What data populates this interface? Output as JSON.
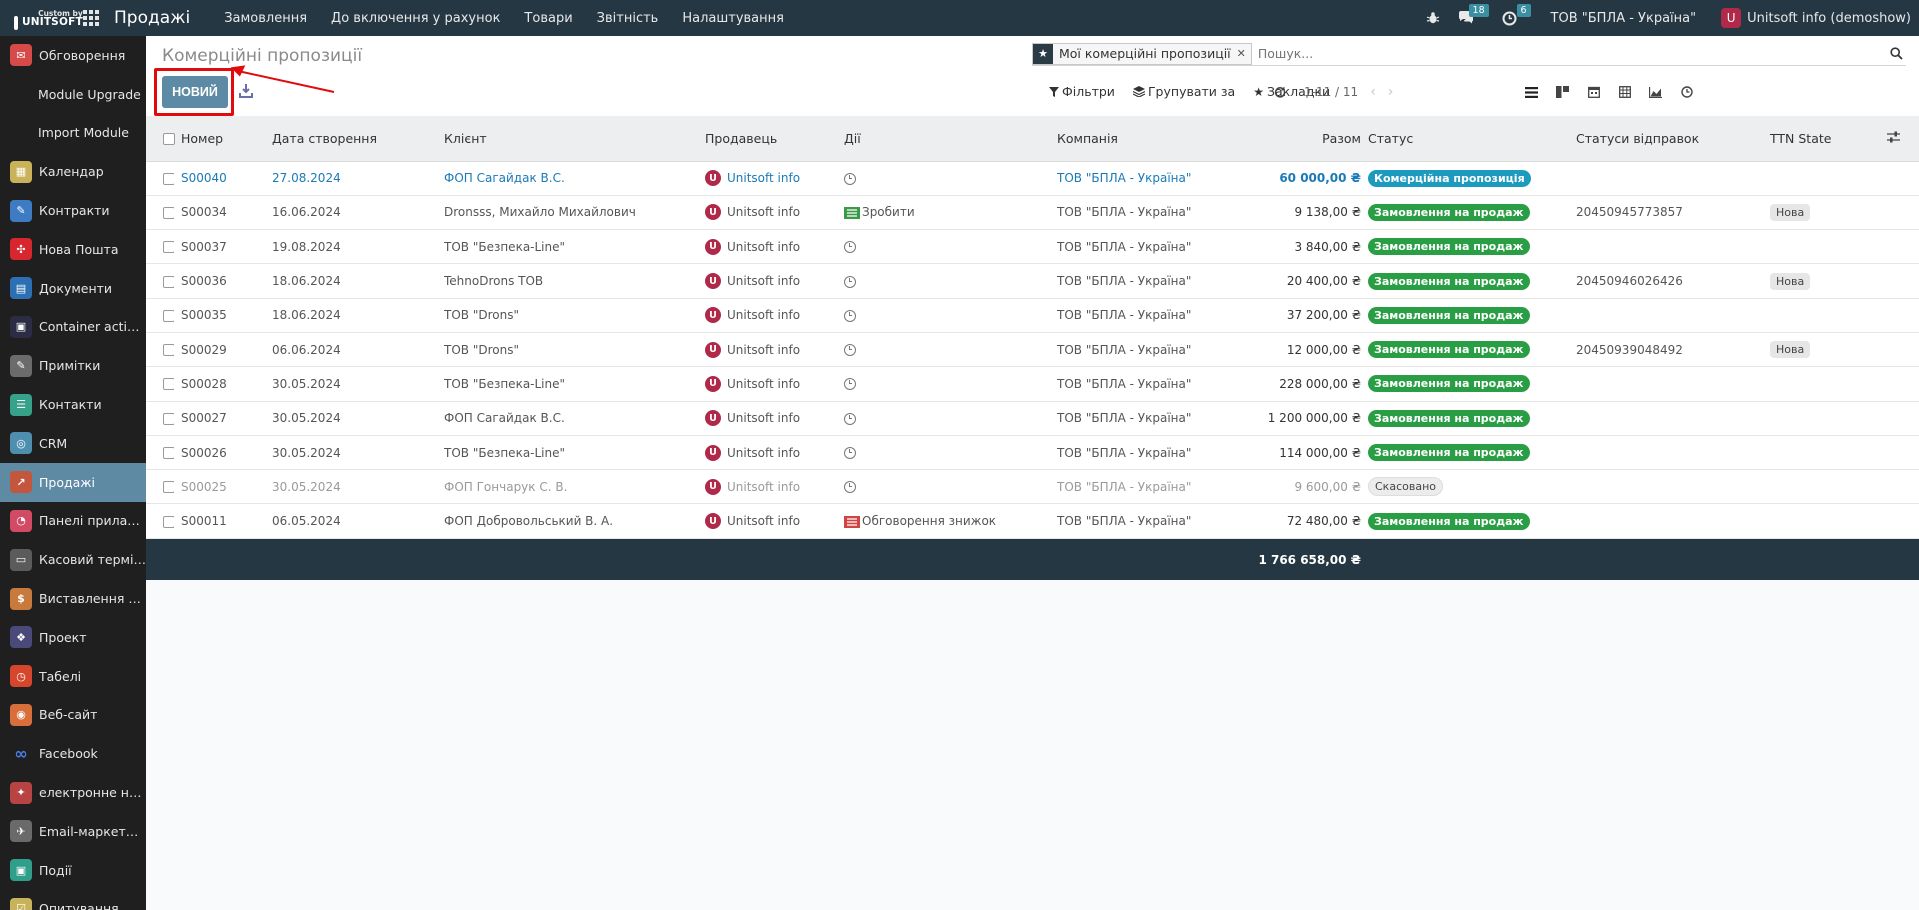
{
  "topbar": {
    "brand_small": "Custom by",
    "brand_big": "UNITSOFT",
    "app_title": "Продажі",
    "menu": [
      "Замовлення",
      "До включення у рахунок",
      "Товари",
      "Звітність",
      "Налаштування"
    ],
    "messages_count": "18",
    "activities_count": "6",
    "company": "ТОВ \"БПЛА - Україна\"",
    "user_initial": "U",
    "user_name": "Unitsoft info (demoshow)"
  },
  "sidebar": {
    "items": [
      {
        "label": "Обговорення",
        "icon": "chat-icon",
        "color": "#d64a4a"
      },
      {
        "label": "Module Upgrade",
        "icon": "",
        "color": ""
      },
      {
        "label": "Import Module",
        "icon": "",
        "color": ""
      },
      {
        "label": "Календар",
        "icon": "calendar-icon",
        "color": "#c9b25a"
      },
      {
        "label": "Контракти",
        "icon": "contract-icon",
        "color": "#3d7bc2"
      },
      {
        "label": "Нова Пошта",
        "icon": "nova-poshta-icon",
        "color": "#d8262f"
      },
      {
        "label": "Документи",
        "icon": "documents-icon",
        "color": "#2d6fb3"
      },
      {
        "label": "Container actions",
        "icon": "container-icon",
        "color": "#2c2c44"
      },
      {
        "label": "Примітки",
        "icon": "notes-icon",
        "color": "#6b6b6b"
      },
      {
        "label": "Контакти",
        "icon": "contacts-icon",
        "color": "#37a28a"
      },
      {
        "label": "CRM",
        "icon": "crm-icon",
        "color": "#4e8fb0"
      },
      {
        "label": "Продажі",
        "icon": "sales-icon",
        "color": "#c4563d"
      },
      {
        "label": "Панелі приладів",
        "icon": "dashboard-icon",
        "color": "#d24a63"
      },
      {
        "label": "Касовий термін...",
        "icon": "pos-icon",
        "color": "#5b5b5b"
      },
      {
        "label": "Виставлення ра...",
        "icon": "invoicing-icon",
        "color": "#c87a3d"
      },
      {
        "label": "Проект",
        "icon": "project-icon",
        "color": "#4a4a7a"
      },
      {
        "label": "Табелі",
        "icon": "timesheet-icon",
        "color": "#d5462d"
      },
      {
        "label": "Веб-сайт",
        "icon": "website-icon",
        "color": "#d86f3b"
      },
      {
        "label": "Facebook",
        "icon": "facebook-icon",
        "color": ""
      },
      {
        "label": "електронне на...",
        "icon": "elearning-icon",
        "color": "#b84343"
      },
      {
        "label": "Email-маркетинг",
        "icon": "email-marketing-icon",
        "color": "#6a6a6a"
      },
      {
        "label": "Події",
        "icon": "events-icon",
        "color": "#2f9e8a"
      },
      {
        "label": "Опитування",
        "icon": "survey-icon",
        "color": "#c9b35a"
      }
    ],
    "active_index": 11
  },
  "control": {
    "breadcrumb": "Комерційні пропозиції",
    "new_button": "НОВИЙ",
    "facet": "Мої комерційні пропозиції",
    "search_placeholder": "Пошук...",
    "filters": "Фільтри",
    "group_by": "Групувати за",
    "favorites": "Закладки",
    "pager": "1-11 / 11"
  },
  "table": {
    "headers": {
      "number": "Номер",
      "date": "Дата створення",
      "client": "Клієнт",
      "seller": "Продавець",
      "actions": "Дії",
      "company": "Компанія",
      "total": "Разом",
      "status": "Статус",
      "shipments": "Статуси відправок",
      "ttn": "TTN State"
    },
    "rows": [
      {
        "number": "S00040",
        "date": "27.08.2024",
        "client": "ФОП Сагайдак В.С.",
        "seller": "Unitsoft info",
        "activity": "",
        "activity_type": "clock",
        "company": "ТОВ \"БПЛА - Україна\"",
        "total": "60 000,00 ₴",
        "status": "Комерційна пропозиція",
        "status_kind": "quote",
        "shipment": "",
        "ttn": ""
      },
      {
        "number": "S00034",
        "date": "16.06.2024",
        "client": "Dronsss, Михайло Михайлович",
        "seller": "Unitsoft info",
        "activity": "Зробити",
        "activity_type": "todo",
        "company": "ТОВ \"БПЛА - Україна\"",
        "total": "9 138,00 ₴",
        "status": "Замовлення на продаж",
        "status_kind": "order",
        "shipment": "20450945773857",
        "ttn": "Нова"
      },
      {
        "number": "S00037",
        "date": "19.08.2024",
        "client": "ТОВ \"Безпека-Line\"",
        "seller": "Unitsoft info",
        "activity": "",
        "activity_type": "clock",
        "company": "ТОВ \"БПЛА - Україна\"",
        "total": "3 840,00 ₴",
        "status": "Замовлення на продаж",
        "status_kind": "order",
        "shipment": "",
        "ttn": ""
      },
      {
        "number": "S00036",
        "date": "18.06.2024",
        "client": "TehnoDrons ТОВ",
        "seller": "Unitsoft info",
        "activity": "",
        "activity_type": "clock",
        "company": "ТОВ \"БПЛА - Україна\"",
        "total": "20 400,00 ₴",
        "status": "Замовлення на продаж",
        "status_kind": "order",
        "shipment": "20450946026426",
        "ttn": "Нова"
      },
      {
        "number": "S00035",
        "date": "18.06.2024",
        "client": "ТОВ \"Drons\"",
        "seller": "Unitsoft info",
        "activity": "",
        "activity_type": "clock",
        "company": "ТОВ \"БПЛА - Україна\"",
        "total": "37 200,00 ₴",
        "status": "Замовлення на продаж",
        "status_kind": "order",
        "shipment": "",
        "ttn": ""
      },
      {
        "number": "S00029",
        "date": "06.06.2024",
        "client": "ТОВ \"Drons\"",
        "seller": "Unitsoft info",
        "activity": "",
        "activity_type": "clock",
        "company": "ТОВ \"БПЛА - Україна\"",
        "total": "12 000,00 ₴",
        "status": "Замовлення на продаж",
        "status_kind": "order",
        "shipment": "20450939048492",
        "ttn": "Нова"
      },
      {
        "number": "S00028",
        "date": "30.05.2024",
        "client": "ТОВ \"Безпека-Line\"",
        "seller": "Unitsoft info",
        "activity": "",
        "activity_type": "clock",
        "company": "ТОВ \"БПЛА - Україна\"",
        "total": "228 000,00 ₴",
        "status": "Замовлення на продаж",
        "status_kind": "order",
        "shipment": "",
        "ttn": ""
      },
      {
        "number": "S00027",
        "date": "30.05.2024",
        "client": "ФОП Сагайдак В.С.",
        "seller": "Unitsoft info",
        "activity": "",
        "activity_type": "clock",
        "company": "ТОВ \"БПЛА - Україна\"",
        "total": "1 200 000,00 ₴",
        "status": "Замовлення на продаж",
        "status_kind": "order",
        "shipment": "",
        "ttn": ""
      },
      {
        "number": "S00026",
        "date": "30.05.2024",
        "client": "ТОВ \"Безпека-Line\"",
        "seller": "Unitsoft info",
        "activity": "",
        "activity_type": "clock",
        "company": "ТОВ \"БПЛА - Україна\"",
        "total": "114 000,00 ₴",
        "status": "Замовлення на продаж",
        "status_kind": "order",
        "shipment": "",
        "ttn": ""
      },
      {
        "number": "S00025",
        "date": "30.05.2024",
        "client": "ФОП Гончарук С. В.",
        "seller": "Unitsoft info",
        "activity": "",
        "activity_type": "clock",
        "company": "ТОВ \"БПЛА - Україна\"",
        "total": "9 600,00 ₴",
        "status": "Скасовано",
        "status_kind": "cancel",
        "shipment": "",
        "ttn": ""
      },
      {
        "number": "S00011",
        "date": "06.05.2024",
        "client": "ФОП Добровольський В. А.",
        "seller": "Unitsoft info",
        "activity": "Обговорення знижок",
        "activity_type": "meeting",
        "company": "ТОВ \"БПЛА - Україна\"",
        "total": "72 480,00 ₴",
        "status": "Замовлення на продаж",
        "status_kind": "order",
        "shipment": "",
        "ttn": ""
      }
    ],
    "grand_total": "1 766 658,00 ₴"
  },
  "colors": {
    "topbar": "#243742",
    "sidebar": "#1f1f1f",
    "sidebar_active": "#5f8aa3",
    "primary_button": "#5d8ba5",
    "quote_badge": "#1c9bbf",
    "order_badge": "#2a9e45",
    "highlight_annotation": "#e20b0b",
    "link": "#1a7ab5"
  }
}
